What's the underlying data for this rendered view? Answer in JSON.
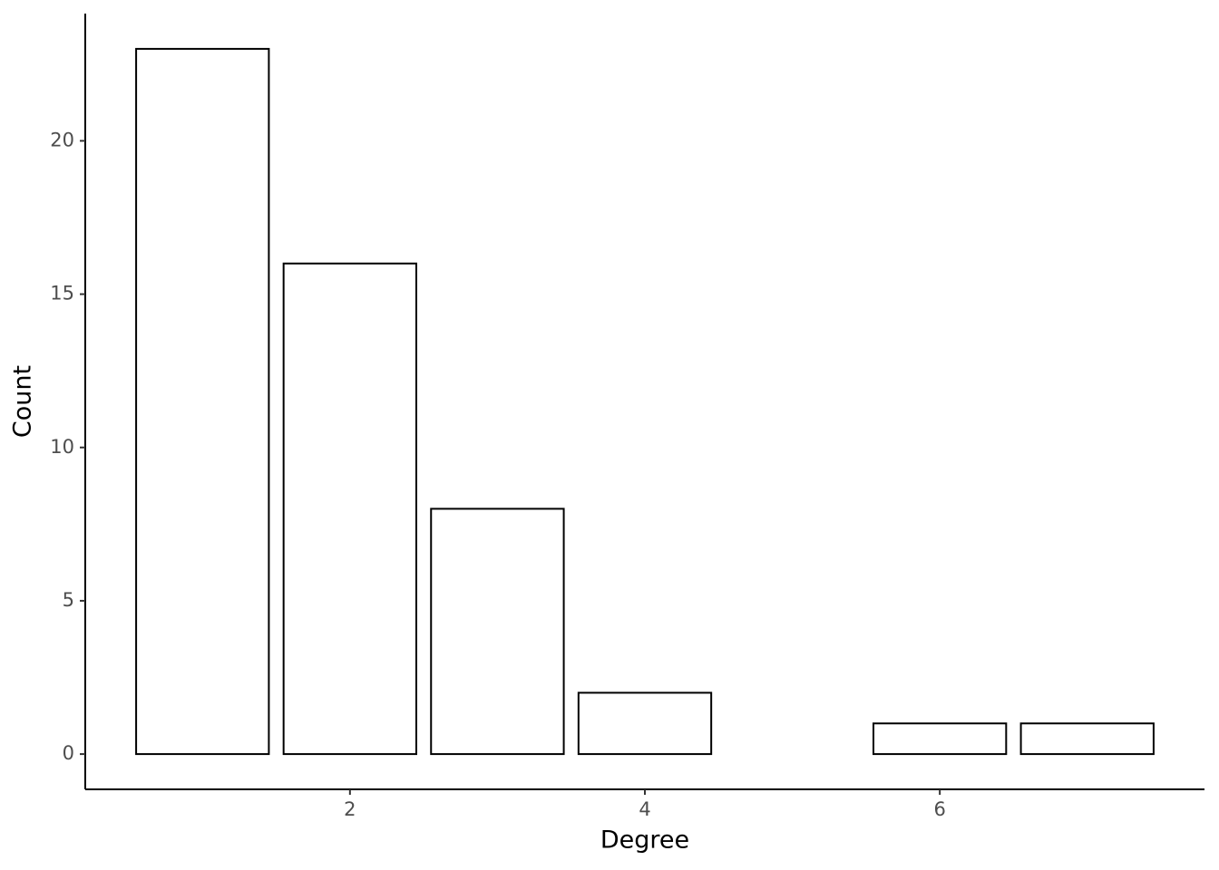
{
  "chart_data": {
    "type": "bar",
    "x_label": "Degree",
    "y_label": "Count",
    "x": [
      1,
      2,
      3,
      4,
      6,
      7
    ],
    "values": [
      23,
      16,
      8,
      2,
      1,
      1
    ],
    "color": "#ffffff",
    "edgecolor": "#000000",
    "xlim": [
      0.205,
      7.795
    ],
    "xticks": [
      2,
      4,
      6
    ],
    "ylim": [
      -1.15,
      24.15
    ],
    "yticks": [
      0,
      5,
      10,
      15,
      20
    ],
    "grid": false
  }
}
